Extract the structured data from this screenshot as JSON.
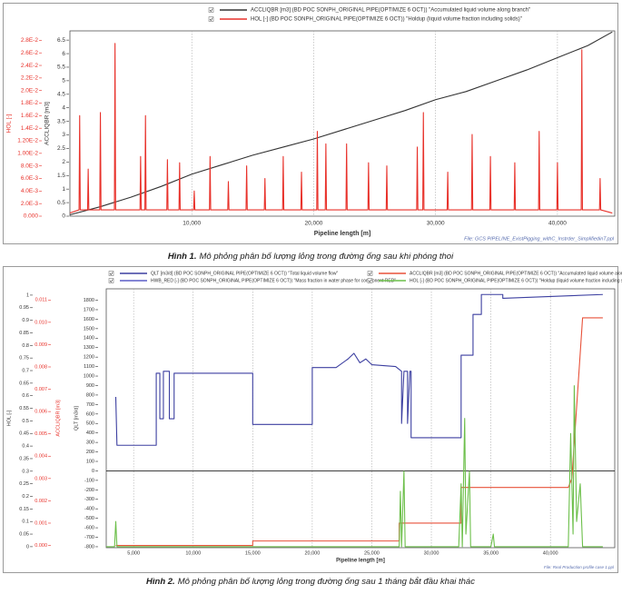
{
  "chart_data": [
    {
      "type": "line",
      "legend": true,
      "grid": true,
      "x_label": "Pipeline length [m]",
      "y_label": "ACCLIQBR [m3]",
      "y2_label": "HOL [-]",
      "note": "File: GCS PIPELINE_ExistPigging_withC_Instrder_SimplifiedinT.ppl",
      "caption_label": "Hình 1.",
      "caption_text": "Mô phỏng phân bố lượng lỏng trong đường ống sau khi phóng thoi",
      "xlim": [
        0,
        44700
      ],
      "xticks": [
        {
          "value": 10000,
          "label": "10,000"
        },
        {
          "value": 20000,
          "label": "20,000"
        },
        {
          "value": 30000,
          "label": "30,000"
        },
        {
          "value": 40000,
          "label": "40,000"
        }
      ],
      "ylim": [
        0,
        6.84
      ],
      "yticks": [
        0,
        0.5,
        1,
        1.5,
        2,
        2.5,
        3,
        3.5,
        4,
        4.5,
        5,
        5.5,
        6,
        6.5
      ],
      "y2lim": [
        0,
        0.0295
      ],
      "y2ticks": [
        {
          "value": 0,
          "label": "0.000"
        },
        {
          "value": 0.002,
          "label": "2.0E-3"
        },
        {
          "value": 0.004,
          "label": "4.0E-3"
        },
        {
          "value": 0.006,
          "label": "6.0E-3"
        },
        {
          "value": 0.008,
          "label": "8.0E-3"
        },
        {
          "value": 0.01,
          "label": "1.00E-2"
        },
        {
          "value": 0.012,
          "label": "1.20E-2"
        },
        {
          "value": 0.014,
          "label": "1.4E-2"
        },
        {
          "value": 0.016,
          "label": "1.6E-2"
        },
        {
          "value": 0.018,
          "label": "1.8E-2"
        },
        {
          "value": 0.02,
          "label": "2.0E-2"
        },
        {
          "value": 0.022,
          "label": "2.2E-2"
        },
        {
          "value": 0.024,
          "label": "2.4E-2"
        },
        {
          "value": 0.026,
          "label": "2.6E-2"
        },
        {
          "value": 0.028,
          "label": "2.8E-2"
        }
      ],
      "series": [
        {
          "name": "ACCLIQBR [m3] (BD POC SONPH_ORIGINAL PIPE(OPTIMIZE 6 OCT)) \"Accumulated liquid volume along branch\"",
          "color": "#333333",
          "axis": "y",
          "x": [
            0,
            2500,
            5000,
            7500,
            10000,
            12500,
            15000,
            17500,
            20000,
            22500,
            25000,
            27500,
            30000,
            32500,
            35000,
            37500,
            40000,
            42500,
            44500
          ],
          "values": [
            0.05,
            0.35,
            0.7,
            1.1,
            1.55,
            1.9,
            2.25,
            2.55,
            2.85,
            3.2,
            3.55,
            3.9,
            4.3,
            4.6,
            5.0,
            5.4,
            5.85,
            6.3,
            6.8
          ]
        },
        {
          "name": "HOL [-] (BD POC SONPH_ORIGINAL PIPE(OPTIMIZE 6 OCT)) \"Holdup (liquid volume fraction including solids)\"",
          "color": "#e8312a",
          "axis": "y2",
          "x": [
            0,
            750,
            800,
            850,
            1450,
            1500,
            1550,
            2450,
            2500,
            2550,
            3650,
            3700,
            3750,
            5750,
            5800,
            5850,
            6150,
            6200,
            6250,
            7950,
            8000,
            8050,
            8950,
            9000,
            9050,
            10150,
            10200,
            10250,
            11450,
            11500,
            11550,
            12950,
            13000,
            13050,
            14450,
            14500,
            14550,
            15950,
            16000,
            16050,
            17450,
            17500,
            17550,
            18950,
            19000,
            19050,
            20250,
            20300,
            20350,
            20950,
            21000,
            21050,
            22650,
            22700,
            22750,
            24450,
            24500,
            24550,
            25950,
            26000,
            26050,
            28450,
            28500,
            28550,
            28950,
            29000,
            29050,
            30950,
            31000,
            31050,
            32950,
            33000,
            33050,
            34450,
            34500,
            34550,
            36450,
            36500,
            36550,
            38450,
            38500,
            38550,
            39950,
            40000,
            40050,
            41950,
            42000,
            42050,
            43450,
            43500,
            43550,
            44500
          ],
          "values": [
            0.0005,
            0.001,
            0.016,
            0.001,
            0.001,
            0.0075,
            0.001,
            0.001,
            0.0165,
            0.001,
            0.001,
            0.0275,
            0.001,
            0.001,
            0.0095,
            0.001,
            0.001,
            0.016,
            0.001,
            0.001,
            0.009,
            0.001,
            0.001,
            0.0085,
            0.001,
            0.001,
            0.004,
            0.001,
            0.001,
            0.0095,
            0.001,
            0.001,
            0.0055,
            0.001,
            0.001,
            0.008,
            0.001,
            0.001,
            0.006,
            0.001,
            0.001,
            0.0095,
            0.001,
            0.001,
            0.007,
            0.001,
            0.001,
            0.0135,
            0.001,
            0.001,
            0.0115,
            0.001,
            0.001,
            0.0115,
            0.001,
            0.001,
            0.0085,
            0.001,
            0.001,
            0.008,
            0.001,
            0.001,
            0.011,
            0.001,
            0.001,
            0.0165,
            0.001,
            0.001,
            0.007,
            0.001,
            0.001,
            0.013,
            0.001,
            0.001,
            0.0095,
            0.001,
            0.001,
            0.0085,
            0.001,
            0.001,
            0.0135,
            0.001,
            0.001,
            0.0085,
            0.001,
            0.001,
            0.0265,
            0.001,
            0.001,
            0.006,
            0.001,
            0.0005
          ]
        }
      ]
    },
    {
      "type": "line",
      "legend": true,
      "grid": true,
      "x_label": "Pipeline length [m]",
      "y_label": "HOL [-]",
      "y2_label": "ACCLIQBR [m3]",
      "y3_label": "QLT [m3/d]",
      "note": "File: Real Production profile case 1.ppl",
      "caption_label": "Hình 2.",
      "caption_text": "Mô phỏng phân bố lượng lỏng trong đường ống sau 1 tháng bắt đầu khai thác",
      "xlim": [
        2700,
        45400
      ],
      "xticks": [
        {
          "value": 5000,
          "label": "5,000"
        },
        {
          "value": 10000,
          "label": "10,000"
        },
        {
          "value": 15000,
          "label": "15,000"
        },
        {
          "value": 20000,
          "label": "20,000"
        },
        {
          "value": 25000,
          "label": "25,000"
        },
        {
          "value": 30000,
          "label": "30,000"
        },
        {
          "value": 35000,
          "label": "35,000"
        },
        {
          "value": 40000,
          "label": "40,000"
        }
      ],
      "ylim": [
        -0.004,
        1.025
      ],
      "yticks": [
        0,
        0.05,
        0.1,
        0.15,
        0.2,
        0.25,
        0.3,
        0.35,
        0.4,
        0.45,
        0.5,
        0.55,
        0.6,
        0.65,
        0.7,
        0.75,
        0.8,
        0.85,
        0.9,
        0.95,
        1
      ],
      "y2lim": [
        -0.0001,
        0.0115
      ],
      "y2ticks": [
        {
          "value": 0,
          "label": "0.000"
        },
        {
          "value": 0.001,
          "label": "0.001"
        },
        {
          "value": 0.002,
          "label": "0.002"
        },
        {
          "value": 0.003,
          "label": "0.003"
        },
        {
          "value": 0.004,
          "label": "0.004"
        },
        {
          "value": 0.005,
          "label": "0.005"
        },
        {
          "value": 0.006,
          "label": "0.006"
        },
        {
          "value": 0.007,
          "label": "0.007"
        },
        {
          "value": 0.008,
          "label": "0.008"
        },
        {
          "value": 0.009,
          "label": "0.009"
        },
        {
          "value": 0.01,
          "label": "0.010"
        },
        {
          "value": 0.011,
          "label": "0.011"
        }
      ],
      "y3lim": [
        -810,
        1920
      ],
      "y3ticks": [
        -800,
        -700,
        -600,
        -500,
        -400,
        -300,
        -200,
        -100,
        0,
        100,
        200,
        300,
        400,
        500,
        600,
        700,
        800,
        900,
        1000,
        1100,
        1200,
        1300,
        1400,
        1500,
        1600,
        1700,
        1800
      ],
      "series": [
        {
          "name": "QLT [m3/d] (BD POC SONPH_ORIGINAL PIPE(OPTIMIZE 6 OCT)) \"Total liquid volume flow\"",
          "color": "#3c3fa0",
          "axis": "y3",
          "x": [
            3500,
            3600,
            6900,
            6900,
            7200,
            7200,
            7500,
            7500,
            8000,
            8000,
            8400,
            8400,
            15000,
            15000,
            20000,
            20000,
            22000,
            23000,
            23500,
            24000,
            24500,
            25000,
            27000,
            27500,
            27500,
            27700,
            28000,
            28000,
            28200,
            28300,
            28300,
            32500,
            32500,
            33500,
            33500,
            34200,
            34200,
            36000,
            36000,
            44400
          ],
          "values": [
            780,
            270,
            270,
            1030,
            1030,
            550,
            550,
            1050,
            1050,
            550,
            550,
            1030,
            1030,
            490,
            490,
            1090,
            1090,
            1180,
            1240,
            1140,
            1180,
            1120,
            1100,
            1050,
            500,
            1050,
            1050,
            500,
            1050,
            1050,
            350,
            350,
            1220,
            1220,
            1650,
            1650,
            1860,
            1860,
            1820,
            1860
          ]
        },
        {
          "name": "HWB_RED [-] (BD POC SONPH_ORIGINAL PIPE(OPTIMIZE 6 OCT)) \"Mass fraction in water phase for component RED\"",
          "color": "#5b5fc7",
          "axis": "y3",
          "x": [],
          "values": []
        },
        {
          "name": "ACCLIQBR [m3] (BD POC SONPH_ORIGINAL PIPE(OPTIMIZE 6 OCT)) \"Accumulated liquid volume along branch\"",
          "color": "#e8523a",
          "axis": "y2",
          "x": [
            3500,
            15000,
            15000,
            27300,
            27300,
            32500,
            32500,
            41500,
            41800,
            42300,
            42700,
            44400
          ],
          "values": [
            0,
            0,
            0.0002,
            0.0002,
            0.001,
            0.001,
            0.0026,
            0.0026,
            0.003,
            0.007,
            0.0102,
            0.0102
          ]
        },
        {
          "name": "HOL [-] (BD POC SONPH_ORIGINAL PIPE(OPTIMIZE 6 OCT)) \"Holdup (liquid volume fraction including solids)\"",
          "color": "#6cbf4a",
          "axis": "y",
          "x": [
            2700,
            3400,
            3500,
            3600,
            27300,
            27400,
            27500,
            27700,
            27800,
            32300,
            32500,
            32600,
            32800,
            32900,
            33200,
            33300,
            35000,
            35200,
            35300,
            41500,
            41700,
            41900,
            42000,
            42200,
            42500,
            42700,
            44400
          ],
          "values": [
            0,
            0,
            0.1,
            0,
            0,
            0.22,
            0,
            0.3,
            0,
            0,
            0.25,
            0,
            0.51,
            0.05,
            0.3,
            0,
            0,
            0.05,
            0,
            0,
            0.45,
            0.05,
            0.64,
            0.1,
            0.25,
            0,
            0
          ]
        }
      ]
    }
  ]
}
